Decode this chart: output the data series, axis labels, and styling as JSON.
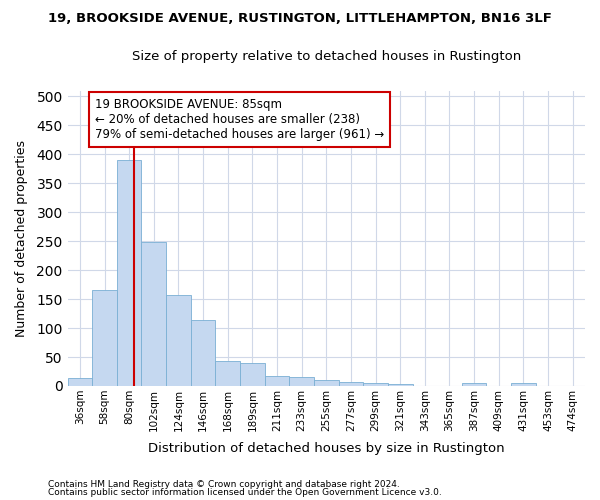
{
  "title1": "19, BROOKSIDE AVENUE, RUSTINGTON, LITTLEHAMPTON, BN16 3LF",
  "title2": "Size of property relative to detached houses in Rustington",
  "xlabel": "Distribution of detached houses by size in Rustington",
  "ylabel": "Number of detached properties",
  "bar_fill": "#c5d8f0",
  "bar_edge_color": "#7aafd4",
  "background_color": "#ffffff",
  "grid_color": "#d0d8e8",
  "bin_labels": [
    "36sqm",
    "58sqm",
    "80sqm",
    "102sqm",
    "124sqm",
    "146sqm",
    "168sqm",
    "189sqm",
    "211sqm",
    "233sqm",
    "255sqm",
    "277sqm",
    "299sqm",
    "321sqm",
    "343sqm",
    "365sqm",
    "387sqm",
    "409sqm",
    "431sqm",
    "453sqm",
    "474sqm"
  ],
  "bar_values": [
    13,
    165,
    390,
    248,
    157,
    114,
    43,
    39,
    18,
    15,
    10,
    7,
    5,
    4,
    0,
    0,
    5,
    0,
    5,
    0,
    0
  ],
  "red_line_color": "#cc0000",
  "annotation_line1": "19 BROOKSIDE AVENUE: 85sqm",
  "annotation_line2": "← 20% of detached houses are smaller (238)",
  "annotation_line3": "79% of semi-detached houses are larger (961) →",
  "annotation_box_color": "#ffffff",
  "annotation_box_edge": "#cc0000",
  "footnote1": "Contains HM Land Registry data © Crown copyright and database right 2024.",
  "footnote2": "Contains public sector information licensed under the Open Government Licence v3.0.",
  "ylim": [
    0,
    510
  ],
  "yticks": [
    0,
    50,
    100,
    150,
    200,
    250,
    300,
    350,
    400,
    450,
    500
  ]
}
